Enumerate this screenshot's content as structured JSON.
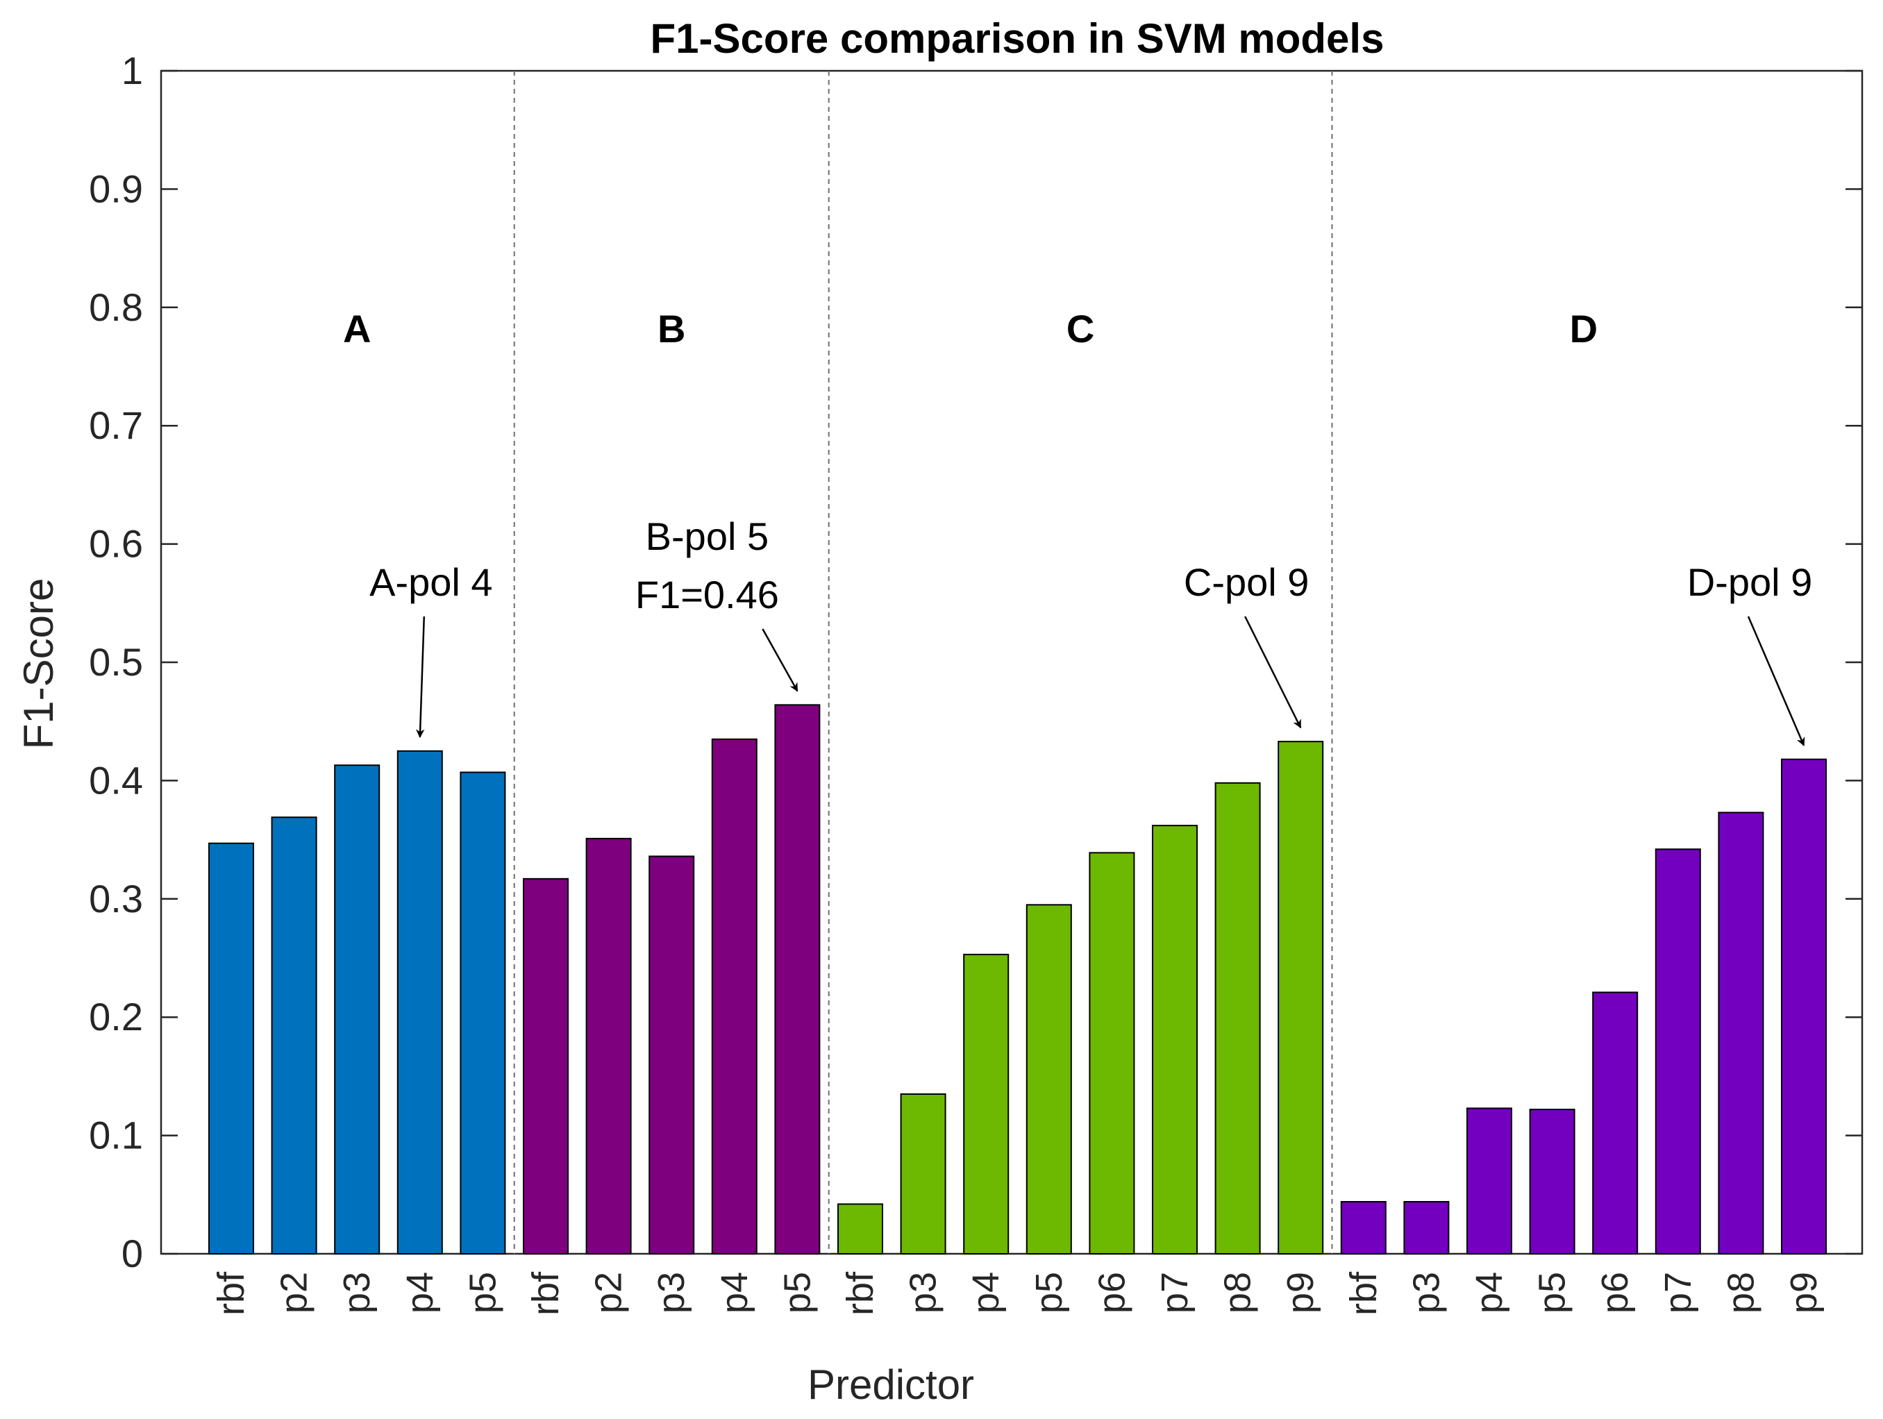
{
  "chart_data": {
    "type": "bar",
    "title": "F1-Score comparison in SVM models",
    "xlabel": "Predictor",
    "ylabel": "F1-Score",
    "ylim": [
      0,
      1
    ],
    "yticks": [
      "0",
      "0.1",
      "0.2",
      "0.3",
      "0.4",
      "0.5",
      "0.6",
      "0.7",
      "0.8",
      "0.9",
      "1"
    ],
    "grid": false,
    "groups": [
      {
        "name": "A",
        "color": "#0072BD",
        "categories": [
          "rbf",
          "p2",
          "p3",
          "p4",
          "p5"
        ],
        "values": [
          0.347,
          0.369,
          0.413,
          0.425,
          0.407
        ]
      },
      {
        "name": "B",
        "color": "#7E007E",
        "categories": [
          "rbf",
          "p2",
          "p3",
          "p4",
          "p5"
        ],
        "values": [
          0.317,
          0.351,
          0.336,
          0.435,
          0.464
        ]
      },
      {
        "name": "C",
        "color": "#6DB800",
        "categories": [
          "rbf",
          "p3",
          "p4",
          "p5",
          "p6",
          "p7",
          "p8",
          "p9"
        ],
        "values": [
          0.042,
          0.135,
          0.253,
          0.295,
          0.339,
          0.362,
          0.398,
          0.433
        ]
      },
      {
        "name": "D",
        "color": "#7300BF",
        "categories": [
          "rbf",
          "p3",
          "p4",
          "p5",
          "p6",
          "p7",
          "p8",
          "p9"
        ],
        "values": [
          0.044,
          0.044,
          0.123,
          0.122,
          0.221,
          0.342,
          0.373,
          0.418
        ]
      }
    ],
    "annotations": [
      {
        "group": 0,
        "bar": 3,
        "lines": [
          "A-pol 4"
        ]
      },
      {
        "group": 1,
        "bar": 4,
        "lines": [
          "B-pol 5",
          "F1=0.46"
        ]
      },
      {
        "group": 2,
        "bar": 7,
        "lines": [
          "C-pol 9"
        ]
      },
      {
        "group": 3,
        "bar": 7,
        "lines": [
          "D-pol 9"
        ]
      }
    ]
  }
}
